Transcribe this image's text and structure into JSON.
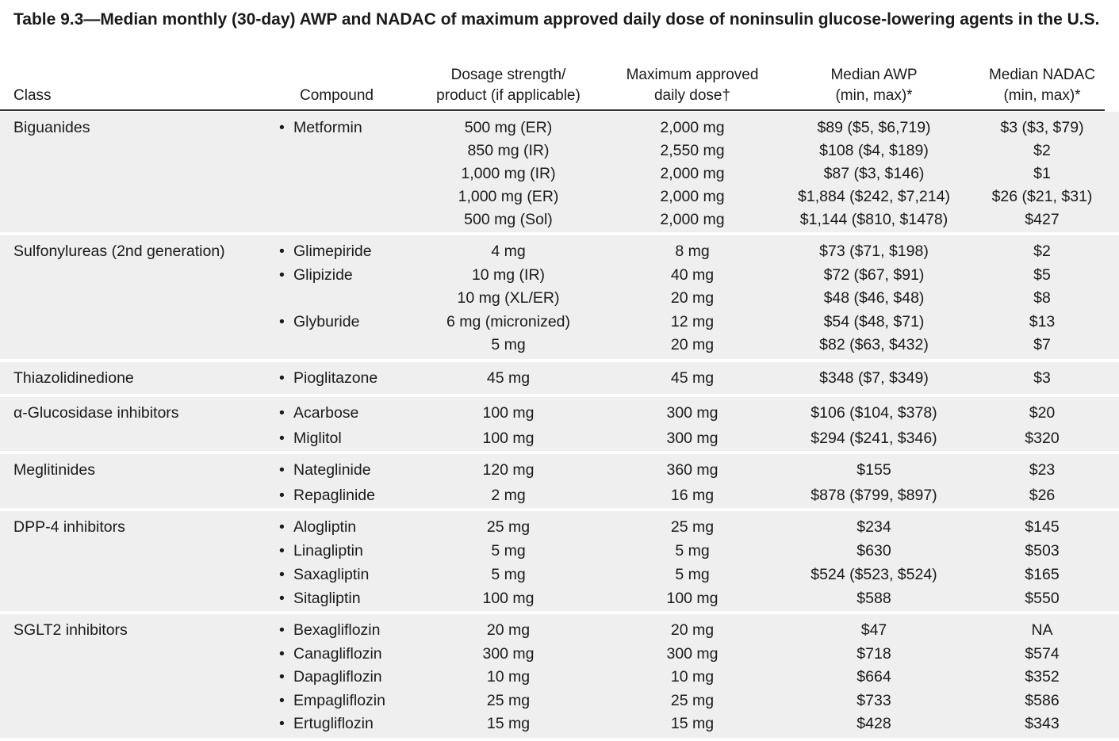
{
  "title": "Table 9.3—Median monthly (30-day) AWP and NADAC of maximum approved daily dose of noninsulin glucose-lowering agents in the U.S.",
  "headers": {
    "class": "Class",
    "compound": "Compound",
    "dose_line1": "Dosage strength/",
    "dose_line2": "product (if applicable)",
    "max_line1": "Maximum approved",
    "max_line2": "daily dose†",
    "awp_line1": "Median AWP",
    "awp_line2": "(min, max)*",
    "nadac_line1": "Median NADAC",
    "nadac_line2": "(min, max)*"
  },
  "bullet": "•",
  "groups": [
    {
      "class": "Biguanides",
      "rows": [
        {
          "compound": "Metformin",
          "dose": "500 mg (ER)",
          "max": "2,000 mg",
          "awp": "$89 ($5, $6,719)",
          "nadac": "$3 ($3, $79)"
        },
        {
          "compound": "",
          "dose": "850 mg (IR)",
          "max": "2,550 mg",
          "awp": "$108 ($4, $189)",
          "nadac": "$2"
        },
        {
          "compound": "",
          "dose": "1,000 mg (IR)",
          "max": "2,000 mg",
          "awp": "$87 ($3, $146)",
          "nadac": "$1"
        },
        {
          "compound": "",
          "dose": "1,000 mg (ER)",
          "max": "2,000 mg",
          "awp": "$1,884 ($242, $7,214)",
          "nadac": "$26 ($21, $31)"
        },
        {
          "compound": "",
          "dose": "500 mg (Sol)",
          "max": "2,000 mg",
          "awp": "$1,144 ($810, $1478)",
          "nadac": "$427"
        }
      ]
    },
    {
      "class": "Sulfonylureas (2nd generation)",
      "rows": [
        {
          "compound": "Glimepiride",
          "dose": "4 mg",
          "max": "8 mg",
          "awp": "$73 ($71, $198)",
          "nadac": "$2"
        },
        {
          "compound": "Glipizide",
          "dose": "10 mg (IR)",
          "max": "40 mg",
          "awp": "$72 ($67, $91)",
          "nadac": "$5"
        },
        {
          "compound": "",
          "dose": "10 mg (XL/ER)",
          "max": "20 mg",
          "awp": "$48 ($46, $48)",
          "nadac": "$8"
        },
        {
          "compound": "Glyburide",
          "dose": "6 mg (micronized)",
          "max": "12 mg",
          "awp": "$54 ($48, $71)",
          "nadac": "$13"
        },
        {
          "compound": "",
          "dose": "5 mg",
          "max": "20 mg",
          "awp": "$82 ($63, $432)",
          "nadac": "$7"
        }
      ]
    },
    {
      "class": "Thiazolidinedione",
      "rows": [
        {
          "compound": "Pioglitazone",
          "dose": "45 mg",
          "max": "45 mg",
          "awp": "$348 ($7, $349)",
          "nadac": "$3"
        }
      ]
    },
    {
      "class": "α-Glucosidase inhibitors",
      "rows": [
        {
          "compound": "Acarbose",
          "dose": "100 mg",
          "max": "300 mg",
          "awp": "$106 ($104, $378)",
          "nadac": "$20"
        },
        {
          "compound": "Miglitol",
          "dose": "100 mg",
          "max": "300 mg",
          "awp": "$294 ($241, $346)",
          "nadac": "$320"
        }
      ]
    },
    {
      "class": "Meglitinides",
      "rows": [
        {
          "compound": "Nateglinide",
          "dose": "120 mg",
          "max": "360 mg",
          "awp": "$155",
          "nadac": "$23"
        },
        {
          "compound": "Repaglinide",
          "dose": "2 mg",
          "max": "16 mg",
          "awp": "$878 ($799, $897)",
          "nadac": "$26"
        }
      ]
    },
    {
      "class": "DPP-4 inhibitors",
      "rows": [
        {
          "compound": "Alogliptin",
          "dose": "25 mg",
          "max": "25 mg",
          "awp": "$234",
          "nadac": "$145"
        },
        {
          "compound": "Linagliptin",
          "dose": "5 mg",
          "max": "5 mg",
          "awp": "$630",
          "nadac": "$503"
        },
        {
          "compound": "Saxagliptin",
          "dose": "5 mg",
          "max": "5 mg",
          "awp": "$524 ($523, $524)",
          "nadac": "$165"
        },
        {
          "compound": "Sitagliptin",
          "dose": "100 mg",
          "max": "100 mg",
          "awp": "$588",
          "nadac": "$550"
        }
      ]
    },
    {
      "class": "SGLT2 inhibitors",
      "rows": [
        {
          "compound": "Bexagliflozin",
          "dose": "20 mg",
          "max": "20 mg",
          "awp": "$47",
          "nadac": "NA"
        },
        {
          "compound": "Canagliflozin",
          "dose": "300 mg",
          "max": "300 mg",
          "awp": "$718",
          "nadac": "$574"
        },
        {
          "compound": "Dapagliflozin",
          "dose": "10 mg",
          "max": "10 mg",
          "awp": "$664",
          "nadac": "$352"
        },
        {
          "compound": "Empagliflozin",
          "dose": "25 mg",
          "max": "25 mg",
          "awp": "$733",
          "nadac": "$586"
        },
        {
          "compound": "Ertugliflozin",
          "dose": "15 mg",
          "max": "15 mg",
          "awp": "$428",
          "nadac": "$343"
        }
      ]
    }
  ]
}
